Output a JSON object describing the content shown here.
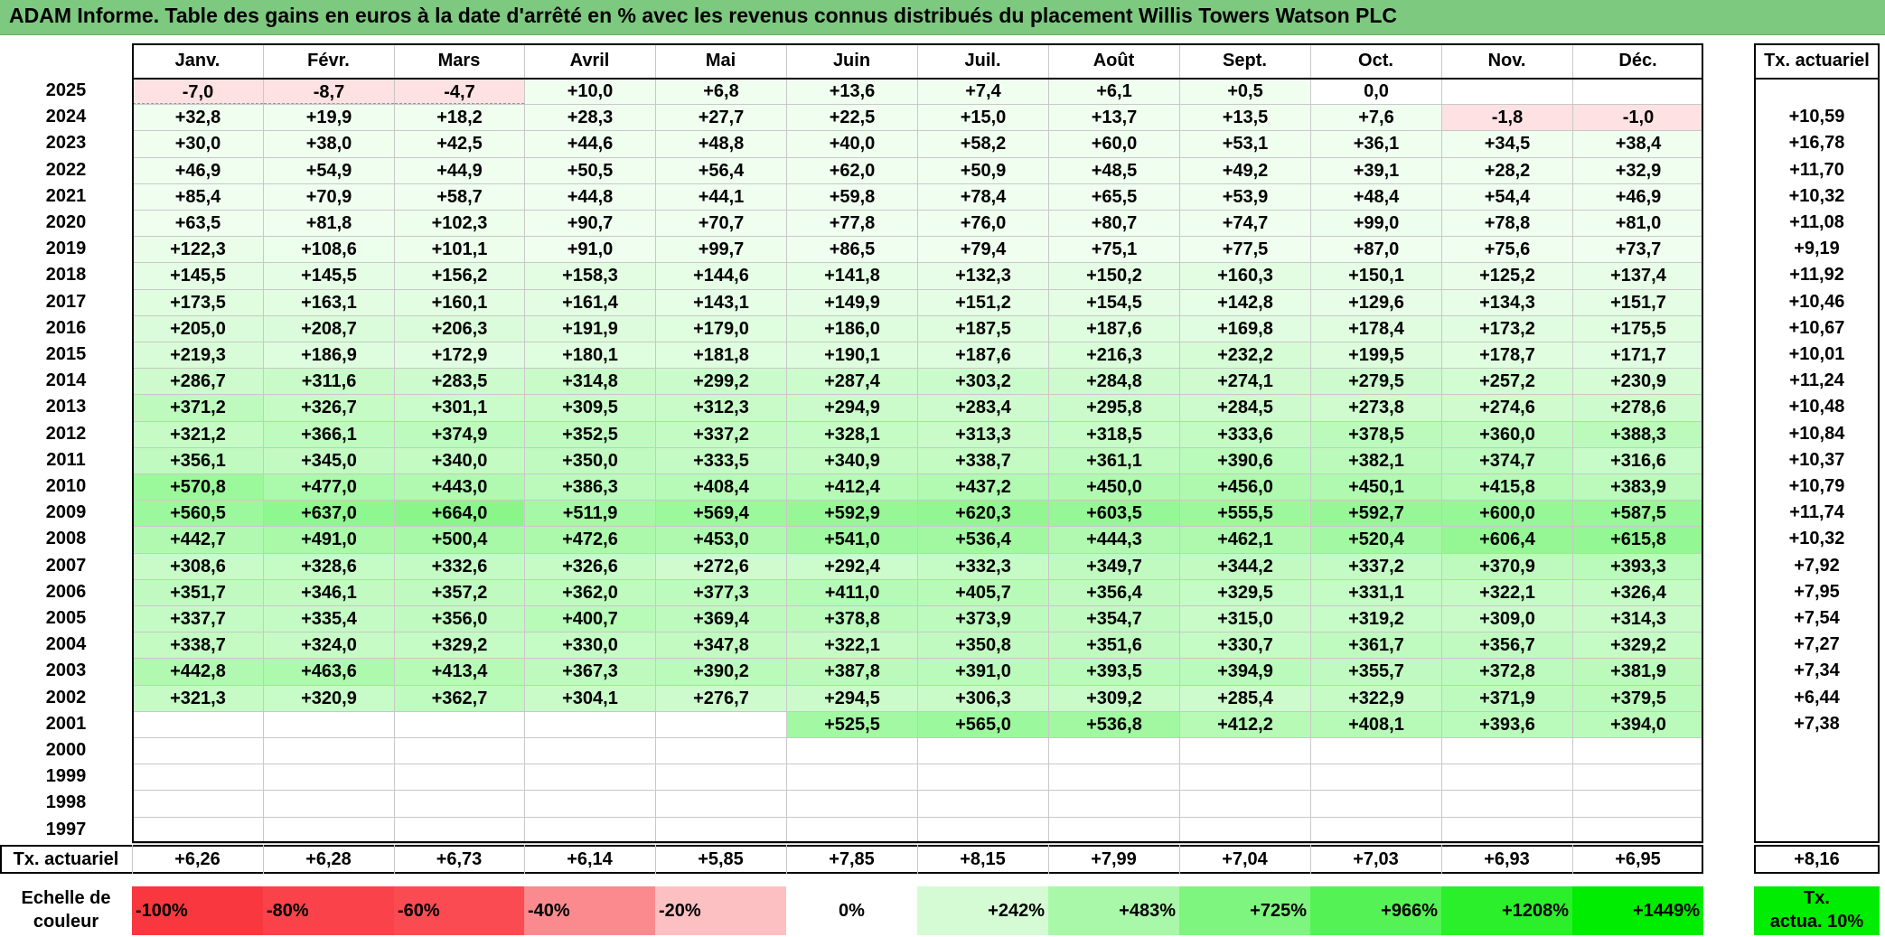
{
  "title": "ADAM Informe. Table des gains en euros à la date d'arrêté en % avec les revenus connus distribués du placement Willis Towers Watson PLC",
  "months": [
    "Janv.",
    "Févr.",
    "Mars",
    "Avril",
    "Mai",
    "Juin",
    "Juil.",
    "Août",
    "Sept.",
    "Oct.",
    "Nov.",
    "Déc."
  ],
  "actuarial_header": "Tx. actuariel",
  "rows": [
    {
      "year": "2025",
      "values": [
        "-7,0",
        "-8,7",
        "-4,7",
        "+10,0",
        "+6,8",
        "+13,6",
        "+7,4",
        "+6,1",
        "+0,5",
        "0,0",
        "",
        ""
      ],
      "rate": ""
    },
    {
      "year": "2024",
      "values": [
        "+32,8",
        "+19,9",
        "+18,2",
        "+28,3",
        "+27,7",
        "+22,5",
        "+15,0",
        "+13,7",
        "+13,5",
        "+7,6",
        "-1,8",
        "-1,0"
      ],
      "rate": "+10,59"
    },
    {
      "year": "2023",
      "values": [
        "+30,0",
        "+38,0",
        "+42,5",
        "+44,6",
        "+48,8",
        "+40,0",
        "+58,2",
        "+60,0",
        "+53,1",
        "+36,1",
        "+34,5",
        "+38,4"
      ],
      "rate": "+16,78"
    },
    {
      "year": "2022",
      "values": [
        "+46,9",
        "+54,9",
        "+44,9",
        "+50,5",
        "+56,4",
        "+62,0",
        "+50,9",
        "+48,5",
        "+49,2",
        "+39,1",
        "+28,2",
        "+32,9"
      ],
      "rate": "+11,70"
    },
    {
      "year": "2021",
      "values": [
        "+85,4",
        "+70,9",
        "+58,7",
        "+44,8",
        "+44,1",
        "+59,8",
        "+78,4",
        "+65,5",
        "+53,9",
        "+48,4",
        "+54,4",
        "+46,9"
      ],
      "rate": "+10,32"
    },
    {
      "year": "2020",
      "values": [
        "+63,5",
        "+81,8",
        "+102,3",
        "+90,7",
        "+70,7",
        "+77,8",
        "+76,0",
        "+80,7",
        "+74,7",
        "+99,0",
        "+78,8",
        "+81,0"
      ],
      "rate": "+11,08"
    },
    {
      "year": "2019",
      "values": [
        "+122,3",
        "+108,6",
        "+101,1",
        "+91,0",
        "+99,7",
        "+86,5",
        "+79,4",
        "+75,1",
        "+77,5",
        "+87,0",
        "+75,6",
        "+73,7"
      ],
      "rate": "+9,19"
    },
    {
      "year": "2018",
      "values": [
        "+145,5",
        "+145,5",
        "+156,2",
        "+158,3",
        "+144,6",
        "+141,8",
        "+132,3",
        "+150,2",
        "+160,3",
        "+150,1",
        "+125,2",
        "+137,4"
      ],
      "rate": "+11,92"
    },
    {
      "year": "2017",
      "values": [
        "+173,5",
        "+163,1",
        "+160,1",
        "+161,4",
        "+143,1",
        "+149,9",
        "+151,2",
        "+154,5",
        "+142,8",
        "+129,6",
        "+134,3",
        "+151,7"
      ],
      "rate": "+10,46"
    },
    {
      "year": "2016",
      "values": [
        "+205,0",
        "+208,7",
        "+206,3",
        "+191,9",
        "+179,0",
        "+186,0",
        "+187,5",
        "+187,6",
        "+169,8",
        "+178,4",
        "+173,2",
        "+175,5"
      ],
      "rate": "+10,67"
    },
    {
      "year": "2015",
      "values": [
        "+219,3",
        "+186,9",
        "+172,9",
        "+180,1",
        "+181,8",
        "+190,1",
        "+187,6",
        "+216,3",
        "+232,2",
        "+199,5",
        "+178,7",
        "+171,7"
      ],
      "rate": "+10,01"
    },
    {
      "year": "2014",
      "values": [
        "+286,7",
        "+311,6",
        "+283,5",
        "+314,8",
        "+299,2",
        "+287,4",
        "+303,2",
        "+284,8",
        "+274,1",
        "+279,5",
        "+257,2",
        "+230,9"
      ],
      "rate": "+11,24"
    },
    {
      "year": "2013",
      "values": [
        "+371,2",
        "+326,7",
        "+301,1",
        "+309,5",
        "+312,3",
        "+294,9",
        "+283,4",
        "+295,8",
        "+284,5",
        "+273,8",
        "+274,6",
        "+278,6"
      ],
      "rate": "+10,48"
    },
    {
      "year": "2012",
      "values": [
        "+321,2",
        "+366,1",
        "+374,9",
        "+352,5",
        "+337,2",
        "+328,1",
        "+313,3",
        "+318,5",
        "+333,6",
        "+378,5",
        "+360,0",
        "+388,3"
      ],
      "rate": "+10,84"
    },
    {
      "year": "2011",
      "values": [
        "+356,1",
        "+345,0",
        "+340,0",
        "+350,0",
        "+333,5",
        "+340,9",
        "+338,7",
        "+361,1",
        "+390,6",
        "+382,1",
        "+374,7",
        "+316,6"
      ],
      "rate": "+10,37"
    },
    {
      "year": "2010",
      "values": [
        "+570,8",
        "+477,0",
        "+443,0",
        "+386,3",
        "+408,4",
        "+412,4",
        "+437,2",
        "+450,0",
        "+456,0",
        "+450,1",
        "+415,8",
        "+383,9"
      ],
      "rate": "+10,79"
    },
    {
      "year": "2009",
      "values": [
        "+560,5",
        "+637,0",
        "+664,0",
        "+511,9",
        "+569,4",
        "+592,9",
        "+620,3",
        "+603,5",
        "+555,5",
        "+592,7",
        "+600,0",
        "+587,5"
      ],
      "rate": "+11,74"
    },
    {
      "year": "2008",
      "values": [
        "+442,7",
        "+491,0",
        "+500,4",
        "+472,6",
        "+453,0",
        "+541,0",
        "+536,4",
        "+444,3",
        "+462,1",
        "+520,4",
        "+606,4",
        "+615,8"
      ],
      "rate": "+10,32"
    },
    {
      "year": "2007",
      "values": [
        "+308,6",
        "+328,6",
        "+332,6",
        "+326,6",
        "+272,6",
        "+292,4",
        "+332,3",
        "+349,7",
        "+344,2",
        "+337,2",
        "+370,9",
        "+393,3"
      ],
      "rate": "+7,92"
    },
    {
      "year": "2006",
      "values": [
        "+351,7",
        "+346,1",
        "+357,2",
        "+362,0",
        "+377,3",
        "+411,0",
        "+405,7",
        "+356,4",
        "+329,5",
        "+331,1",
        "+322,1",
        "+326,4"
      ],
      "rate": "+7,95"
    },
    {
      "year": "2005",
      "values": [
        "+337,7",
        "+335,4",
        "+356,0",
        "+400,7",
        "+369,4",
        "+378,8",
        "+373,9",
        "+354,7",
        "+315,0",
        "+319,2",
        "+309,0",
        "+314,3"
      ],
      "rate": "+7,54"
    },
    {
      "year": "2004",
      "values": [
        "+338,7",
        "+324,0",
        "+329,2",
        "+330,0",
        "+347,8",
        "+322,1",
        "+350,8",
        "+351,6",
        "+330,7",
        "+361,7",
        "+356,7",
        "+329,2"
      ],
      "rate": "+7,27"
    },
    {
      "year": "2003",
      "values": [
        "+442,8",
        "+463,6",
        "+413,4",
        "+367,3",
        "+390,2",
        "+387,8",
        "+391,0",
        "+393,5",
        "+394,9",
        "+355,7",
        "+372,8",
        "+381,9"
      ],
      "rate": "+7,34"
    },
    {
      "year": "2002",
      "values": [
        "+321,3",
        "+320,9",
        "+362,7",
        "+304,1",
        "+276,7",
        "+294,5",
        "+306,3",
        "+309,2",
        "+285,4",
        "+322,9",
        "+371,9",
        "+379,5"
      ],
      "rate": "+6,44"
    },
    {
      "year": "2001",
      "values": [
        "",
        "",
        "",
        "",
        "",
        "+525,5",
        "+565,0",
        "+536,8",
        "+412,2",
        "+408,1",
        "+393,6",
        "+394,0"
      ],
      "rate": "+7,38"
    },
    {
      "year": "2000",
      "values": [
        "",
        "",
        "",
        "",
        "",
        "",
        "",
        "",
        "",
        "",
        "",
        ""
      ],
      "rate": ""
    },
    {
      "year": "1999",
      "values": [
        "",
        "",
        "",
        "",
        "",
        "",
        "",
        "",
        "",
        "",
        "",
        ""
      ],
      "rate": ""
    },
    {
      "year": "1998",
      "values": [
        "",
        "",
        "",
        "",
        "",
        "",
        "",
        "",
        "",
        "",
        "",
        ""
      ],
      "rate": ""
    },
    {
      "year": "1997",
      "values": [
        "",
        "",
        "",
        "",
        "",
        "",
        "",
        "",
        "",
        "",
        "",
        ""
      ],
      "rate": ""
    }
  ],
  "footer": {
    "label": "Tx. actuariel",
    "values": [
      "+6,26",
      "+6,28",
      "+6,73",
      "+6,14",
      "+5,85",
      "+7,85",
      "+8,15",
      "+7,99",
      "+7,04",
      "+7,03",
      "+6,93",
      "+6,95"
    ],
    "total": "+8,16"
  },
  "scale": {
    "label_line1": "Echelle de",
    "label_line2": "couleur",
    "steps": [
      {
        "text": "-100%",
        "color": "#f8383e"
      },
      {
        "text": "-80%",
        "color": "#f94249"
      },
      {
        "text": "-60%",
        "color": "#fa4b52"
      },
      {
        "text": "-40%",
        "color": "#fb8a8e"
      },
      {
        "text": "-20%",
        "color": "#fdc0c2"
      },
      {
        "text": "0%",
        "color": "#ffffff"
      },
      {
        "text": "+242%",
        "color": "#d5fbd5"
      },
      {
        "text": "+483%",
        "color": "#a9f7a9"
      },
      {
        "text": "+725%",
        "color": "#7ef57e"
      },
      {
        "text": "+966%",
        "color": "#55f255"
      },
      {
        "text": "+1208%",
        "color": "#2aef2a"
      },
      {
        "text": "+1449%",
        "color": "#00ec00"
      }
    ],
    "actua_line1": "Tx.",
    "actua_line2": "actua. 10%",
    "actua_color": "#00ec00"
  }
}
